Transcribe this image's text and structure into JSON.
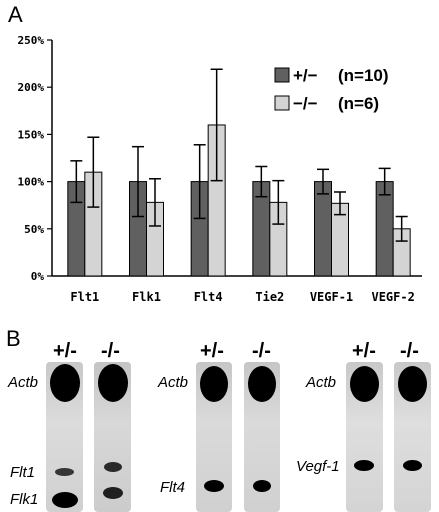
{
  "panel_a_label": "A",
  "panel_b_label": "B",
  "chart_data": {
    "type": "bar",
    "categories": [
      "Flt1",
      "Flk1",
      "Flt4",
      "Tie2",
      "VEGF-1",
      "VEGF-2"
    ],
    "series": [
      {
        "name": "+/−",
        "legend_n": "(n=10)",
        "color": "#606060",
        "values": [
          100,
          100,
          100,
          100,
          100,
          100
        ],
        "errors": [
          22,
          37,
          39,
          16,
          13,
          14
        ]
      },
      {
        "name": "−/−",
        "legend_n": "(n=6)",
        "color": "#d4d4d4",
        "values": [
          110,
          78,
          160,
          78,
          77,
          50
        ],
        "errors": [
          37,
          25,
          59,
          23,
          12,
          13
        ]
      }
    ],
    "yticks": [
      "0%",
      "50%",
      "100%",
      "150%",
      "200%",
      "250%"
    ],
    "ylim": [
      0,
      250
    ],
    "legend_position": "top-right",
    "grid": false
  },
  "blots": {
    "groups": [
      {
        "genotypes": [
          "+/-",
          "-/-"
        ],
        "labels": [
          "Actb",
          "Flt1",
          "Flk1"
        ]
      },
      {
        "genotypes": [
          "+/-",
          "-/-"
        ],
        "labels": [
          "Actb",
          "Flt4"
        ]
      },
      {
        "genotypes": [
          "+/-",
          "-/-"
        ],
        "labels": [
          "Actb",
          "Vegf-1"
        ]
      }
    ]
  }
}
